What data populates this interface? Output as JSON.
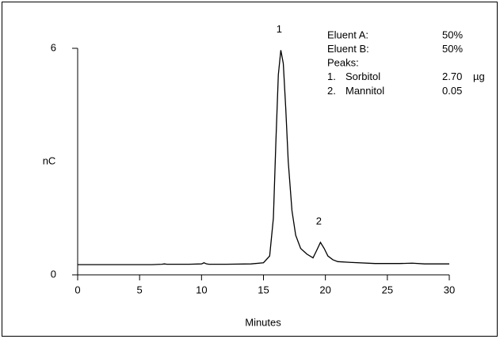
{
  "chart_data": {
    "type": "line",
    "x_label": "Minutes",
    "y_label": "nC",
    "xlim": [
      0,
      30
    ],
    "xticks": [
      0,
      5,
      10,
      15,
      20,
      25,
      30
    ],
    "ylim": [
      0,
      6
    ],
    "yticks": [
      0,
      6
    ],
    "color": "#000000",
    "x": [
      0,
      2,
      4,
      6,
      6.8,
      7,
      7.2,
      9,
      10,
      10.2,
      10.4,
      10.6,
      12,
      14,
      15,
      15.5,
      15.8,
      16.0,
      16.2,
      16.4,
      16.6,
      16.8,
      17.0,
      17.3,
      17.6,
      18,
      18.5,
      19,
      19.3,
      19.6,
      19.9,
      20.2,
      20.6,
      21,
      22,
      24,
      26,
      27,
      28,
      30
    ],
    "values": [
      0.27,
      0.27,
      0.27,
      0.27,
      0.28,
      0.29,
      0.28,
      0.28,
      0.29,
      0.32,
      0.29,
      0.28,
      0.28,
      0.29,
      0.32,
      0.5,
      1.5,
      3.5,
      5.3,
      5.95,
      5.6,
      4.4,
      3.0,
      1.7,
      1.05,
      0.7,
      0.55,
      0.45,
      0.65,
      0.86,
      0.7,
      0.5,
      0.4,
      0.35,
      0.33,
      0.3,
      0.3,
      0.31,
      0.29,
      0.29
    ],
    "annotations": [
      {
        "text": "1",
        "x": 16.4,
        "y": 5.95
      },
      {
        "text": "2",
        "x": 19.6,
        "y": 0.86
      }
    ],
    "legend_rows": [
      [
        "Eluent A:",
        "",
        "50%",
        ""
      ],
      [
        "Eluent B:",
        "",
        "50%",
        ""
      ],
      [
        "Peaks:",
        "",
        "",
        ""
      ],
      [
        "1.",
        "Sorbitol",
        "2.70",
        "µg"
      ],
      [
        "2.",
        "Mannitol",
        "0.05",
        ""
      ]
    ]
  }
}
